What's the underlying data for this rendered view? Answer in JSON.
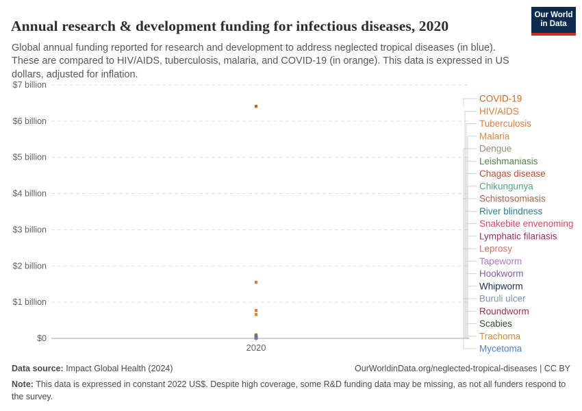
{
  "header": {
    "title": "Annual research & development funding for infectious diseases, 2020",
    "subtitle": "Global annual funding reported for research and development to address neglected tropical diseases (in blue). These are compared to HIV/AIDS, tuberculosis, malaria, and COVID-19 (in orange). This data is expressed in US dollars, adjusted for inflation.",
    "logo": {
      "line1": "Our World",
      "line2": "in Data",
      "bg_color": "#0e2a4d",
      "stripe_color": "#cf2e23"
    }
  },
  "chart_data": {
    "type": "scatter",
    "title": "Annual research & development funding for infectious diseases, 2020",
    "x_categories": [
      "2020"
    ],
    "xlabel": "",
    "ylabel": "",
    "ylim_billion": [
      0,
      7
    ],
    "y_tick_labels": [
      "$0",
      "$1 billion",
      "$2 billion",
      "$3 billion",
      "$4 billion",
      "$5 billion",
      "$6 billion",
      "$7 billion"
    ],
    "grid": "dashed-horizontal",
    "legend_position": "right",
    "axis_color": "#a1a1a1",
    "gridline_color": "#dcdcdc",
    "connector_color": "#c9c9c9",
    "tick_label_color": "#616161",
    "series": [
      {
        "name": "COVID-19",
        "group": "comparator",
        "color": "#c9651f",
        "value_usd_billion": 6.41
      },
      {
        "name": "HIV/AIDS",
        "group": "comparator",
        "color": "#e07b39",
        "value_usd_billion": 1.55
      },
      {
        "name": "Tuberculosis",
        "group": "comparator",
        "color": "#dc7c38",
        "value_usd_billion": 0.77
      },
      {
        "name": "Malaria",
        "group": "comparator",
        "color": "#e0863c",
        "value_usd_billion": 0.66
      },
      {
        "name": "Dengue",
        "group": "ntd",
        "color": "#998d70",
        "value_usd_billion": 0.1
      },
      {
        "name": "Leishmaniasis",
        "group": "ntd",
        "color": "#578145",
        "value_usd_billion": 0.075
      },
      {
        "name": "Chagas disease",
        "group": "ntd",
        "color": "#bf4b32",
        "value_usd_billion": 0.06
      },
      {
        "name": "Chikungunya",
        "group": "ntd",
        "color": "#51a186",
        "value_usd_billion": 0.05
      },
      {
        "name": "Schistosomiasis",
        "group": "ntd",
        "color": "#a96348",
        "value_usd_billion": 0.045
      },
      {
        "name": "River blindness",
        "group": "ntd",
        "color": "#2e7e8e",
        "value_usd_billion": 0.04
      },
      {
        "name": "Snakebite envenoming",
        "group": "ntd",
        "color": "#d8485e",
        "value_usd_billion": 0.035
      },
      {
        "name": "Lymphatic filariasis",
        "group": "ntd",
        "color": "#9c2d62",
        "value_usd_billion": 0.03
      },
      {
        "name": "Leprosy",
        "group": "ntd",
        "color": "#d17168",
        "value_usd_billion": 0.025
      },
      {
        "name": "Tapeworm",
        "group": "ntd",
        "color": "#a87bbf",
        "value_usd_billion": 0.02
      },
      {
        "name": "Hookworm",
        "group": "ntd",
        "color": "#7a5fb0",
        "value_usd_billion": 0.017
      },
      {
        "name": "Whipworm",
        "group": "ntd",
        "color": "#1e2a49",
        "value_usd_billion": 0.014
      },
      {
        "name": "Buruli ulcer",
        "group": "ntd",
        "color": "#8093ab",
        "value_usd_billion": 0.011
      },
      {
        "name": "Roundworm",
        "group": "ntd",
        "color": "#9e2f42",
        "value_usd_billion": 0.009
      },
      {
        "name": "Scabies",
        "group": "ntd",
        "color": "#2c4e28",
        "value_usd_billion": 0.007
      },
      {
        "name": "Trachoma",
        "group": "ntd",
        "color": "#cd8a3e",
        "value_usd_billion": 0.005
      },
      {
        "name": "Mycetoma",
        "group": "ntd",
        "color": "#5380c6",
        "value_usd_billion": 0.003
      }
    ]
  },
  "axis": {
    "x_tick_label": "2020"
  },
  "footer": {
    "source_label": "Data source:",
    "source_value": " Impact Global Health (2024)",
    "link": "OurWorldinData.org/neglected-tropical-diseases | CC BY",
    "note_label": "Note:",
    "note_value": " This data is expressed in constant 2022 US$. Despite high coverage, some R&D funding data may be missing, as not all funders respond to the survey."
  }
}
